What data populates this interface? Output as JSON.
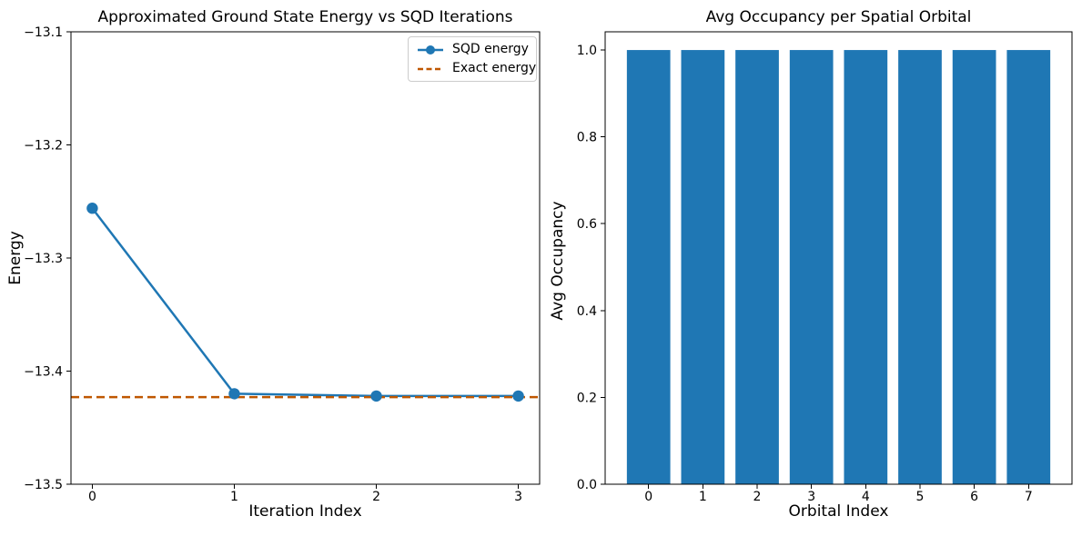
{
  "figure": {
    "background": "#ffffff",
    "text_color": "#000000",
    "spine_color": "#000000"
  },
  "chart_data": [
    {
      "type": "line",
      "title": "Approximated Ground State Energy vs SQD Iterations",
      "xlabel": "Iteration Index",
      "ylabel": "Energy",
      "x": [
        0,
        1,
        2,
        3
      ],
      "series": [
        {
          "name": "SQD energy",
          "values": [
            -13.256,
            -13.42,
            -13.422,
            -13.422
          ],
          "color": "#1f77b4",
          "marker": "circle",
          "line_style": "solid"
        }
      ],
      "hline": {
        "name": "Exact energy",
        "value": -13.423,
        "color": "#BF5700",
        "line_style": "dashed"
      },
      "xlim": [
        -0.15,
        3.15
      ],
      "ylim": [
        -13.5,
        -13.1
      ],
      "xticks": [
        {
          "v": 0,
          "label": "0"
        },
        {
          "v": 1,
          "label": "1"
        },
        {
          "v": 2,
          "label": "2"
        },
        {
          "v": 3,
          "label": "3"
        }
      ],
      "yticks": [
        {
          "v": -13.1,
          "label": "−13.1"
        },
        {
          "v": -13.2,
          "label": "−13.2"
        },
        {
          "v": -13.3,
          "label": "−13.3"
        },
        {
          "v": -13.4,
          "label": "−13.4"
        },
        {
          "v": -13.5,
          "label": "−13.5"
        }
      ],
      "legend": {
        "position": "upper right",
        "entries": [
          "SQD energy",
          "Exact energy"
        ]
      },
      "grid": false
    },
    {
      "type": "bar",
      "title": "Avg Occupancy per Spatial Orbital",
      "xlabel": "Orbital Index",
      "ylabel": "Avg Occupancy",
      "categories": [
        "0",
        "1",
        "2",
        "3",
        "4",
        "5",
        "6",
        "7"
      ],
      "values": [
        1.0,
        1.0,
        1.0,
        1.0,
        1.0,
        1.0,
        1.0,
        1.0
      ],
      "bar_color": "#1f77b4",
      "bar_width": 0.8,
      "xlim": [
        -0.8,
        7.8
      ],
      "ylim": [
        0,
        1.042
      ],
      "yticks": [
        {
          "v": 0.0,
          "label": "0.0"
        },
        {
          "v": 0.2,
          "label": "0.2"
        },
        {
          "v": 0.4,
          "label": "0.4"
        },
        {
          "v": 0.6,
          "label": "0.6"
        },
        {
          "v": 0.8,
          "label": "0.8"
        },
        {
          "v": 1.0,
          "label": "1.0"
        }
      ],
      "grid": false
    }
  ]
}
